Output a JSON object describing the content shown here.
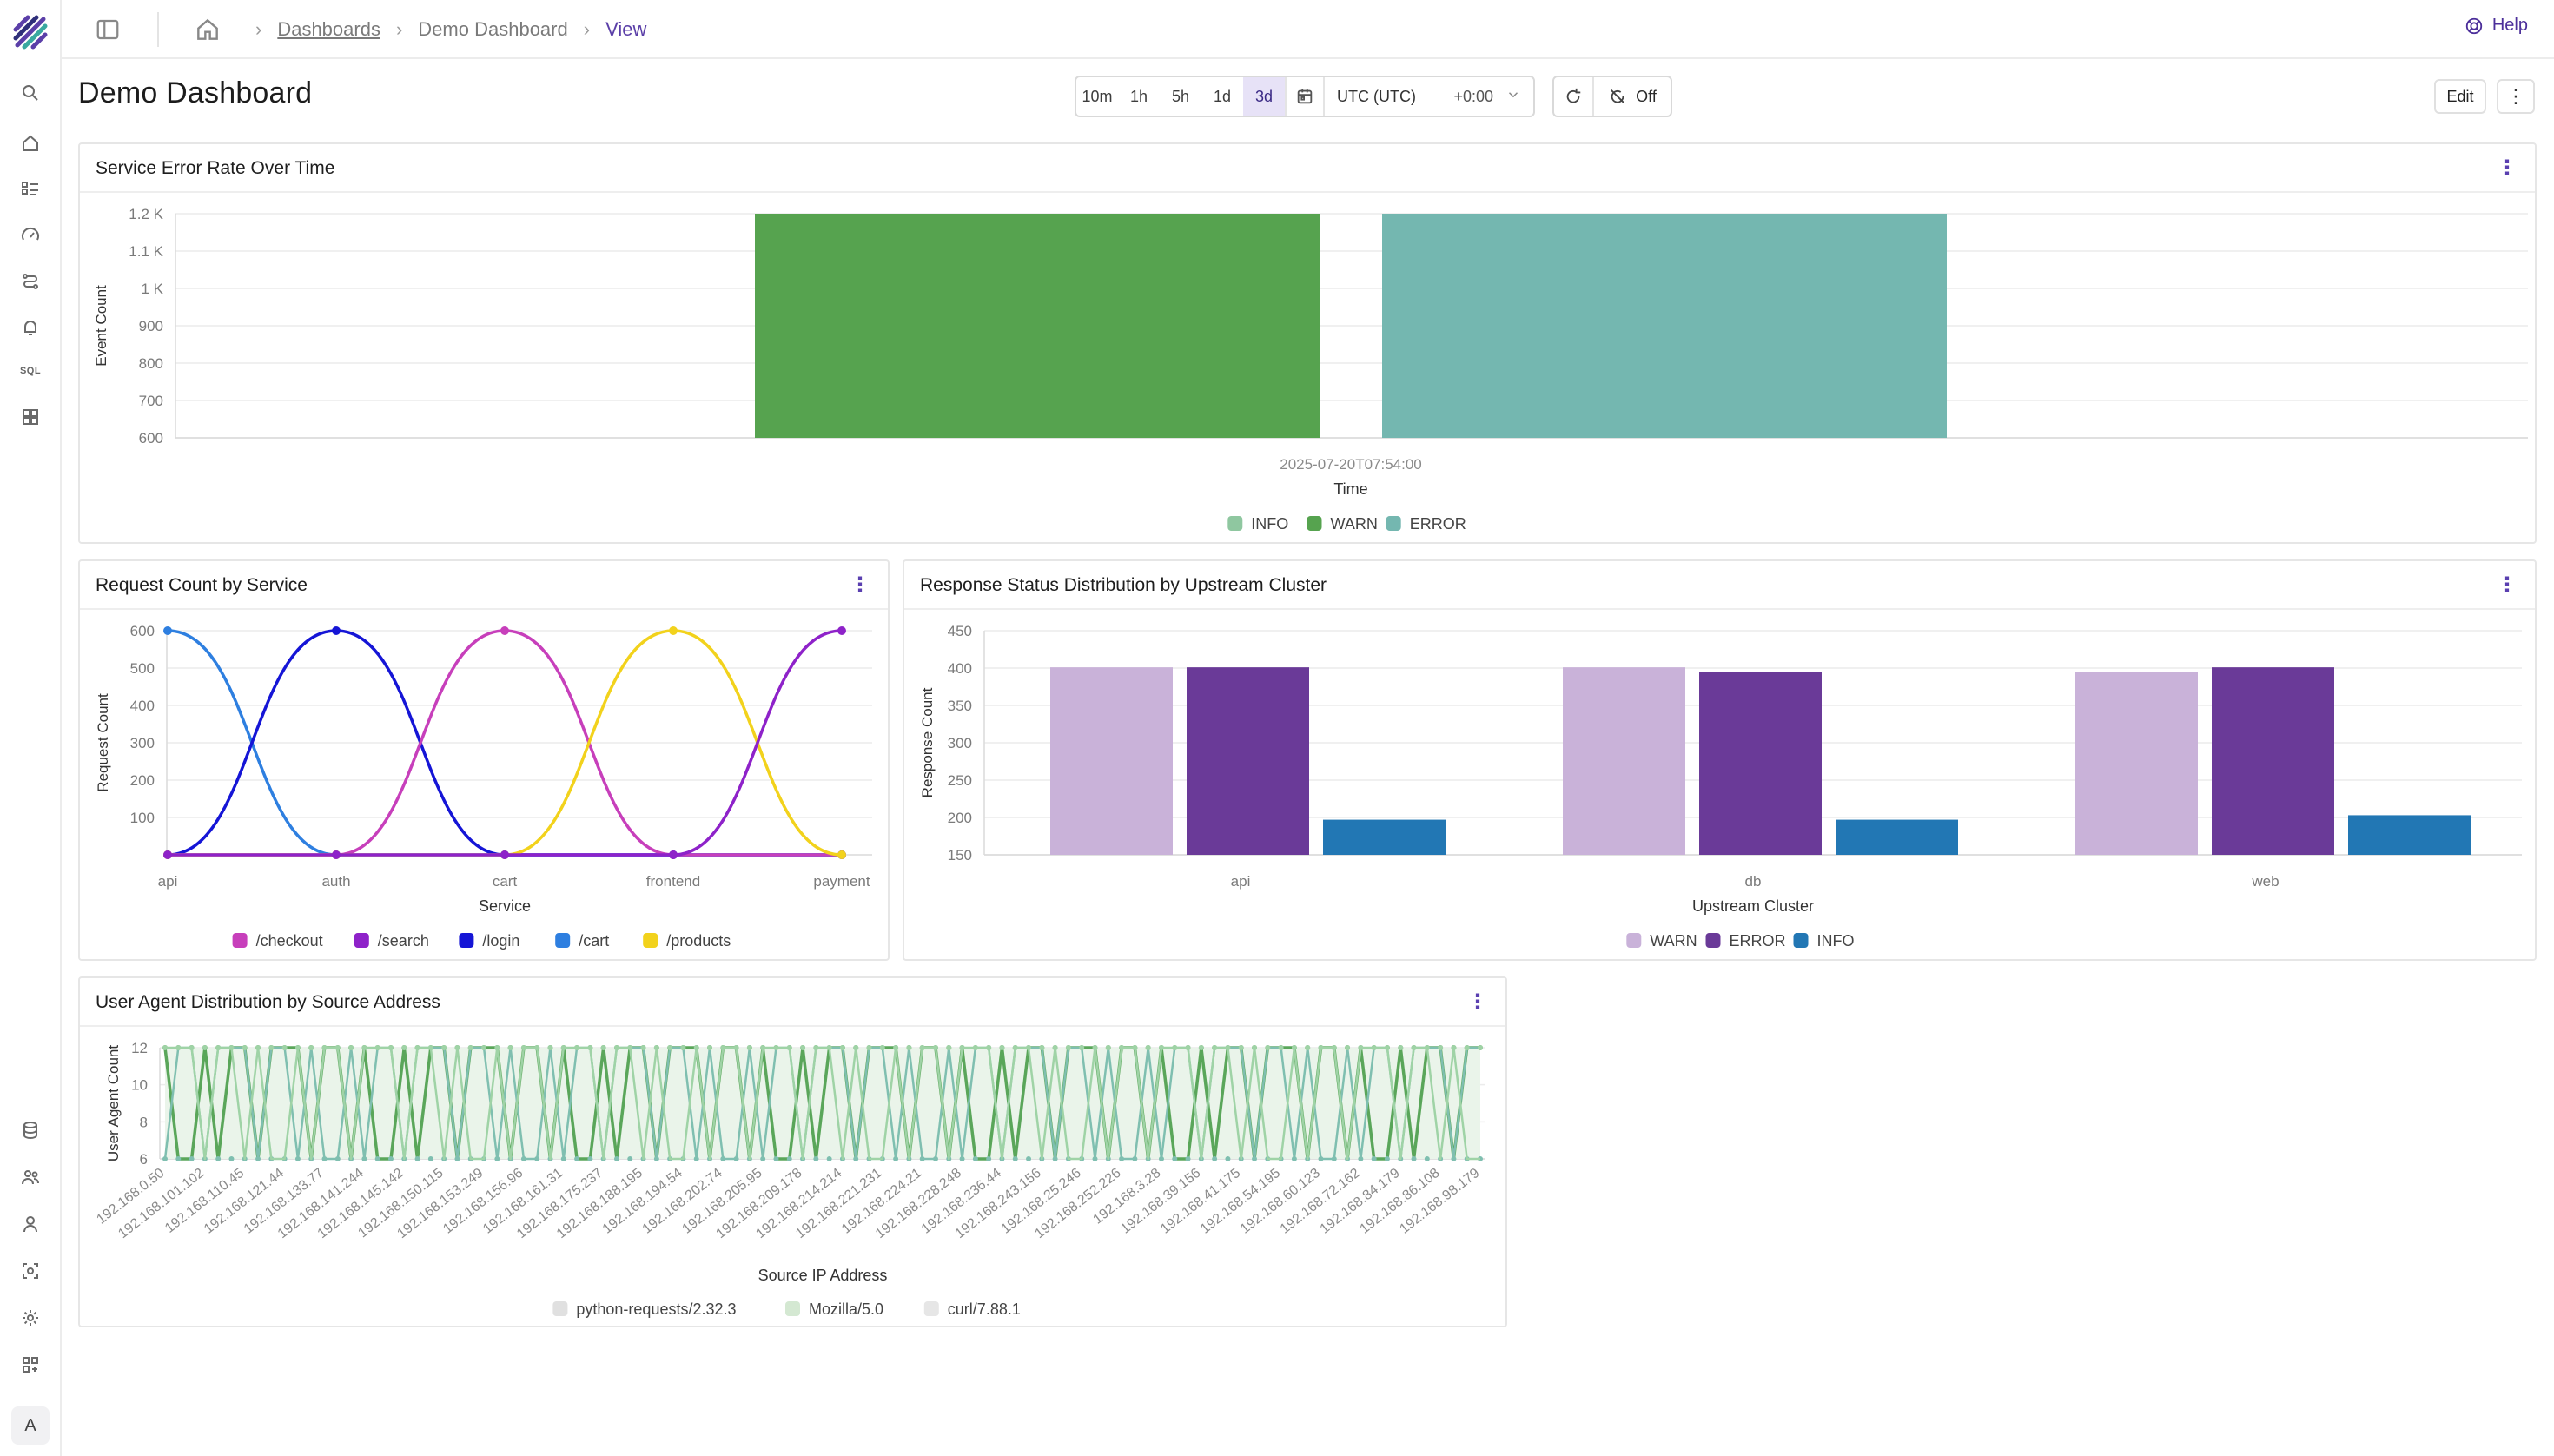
{
  "breadcrumb": {
    "link": "Dashboards",
    "middle": "Demo Dashboard",
    "current": "View"
  },
  "help_label": "Help",
  "page_title": "Demo Dashboard",
  "time_ranges": [
    "10m",
    "1h",
    "5h",
    "1d",
    "3d"
  ],
  "active_range": "3d",
  "timezone": {
    "name": "UTC (UTC)",
    "offset": "+0:00"
  },
  "auto_refresh_label": "Off",
  "edit_label": "Edit",
  "rail_icons": [
    "search-icon",
    "home-icon",
    "logs-icon",
    "gauge-icon",
    "pipeline-icon",
    "bell-icon",
    "sql-icon",
    "dashboards-icon",
    "database-icon",
    "users-icon",
    "user-icon",
    "scan-icon",
    "gear-icon",
    "apps-icon"
  ],
  "rail_sql_label": "SQL",
  "avatar_label": "A",
  "colors": {
    "accent": "#5b3fa8",
    "green": "#56a34f",
    "teal": "#74b7b0"
  },
  "panels": {
    "error_rate": {
      "title": "Service Error Rate Over Time"
    },
    "request_count": {
      "title": "Request Count by Service"
    },
    "response_status": {
      "title": "Response Status Distribution by Upstream Cluster"
    },
    "user_agent": {
      "title": "User Agent Distribution by Source Address"
    }
  },
  "chart_data": [
    {
      "id": "error_rate",
      "type": "bar",
      "x_label": "Time",
      "y_label": "Event Count",
      "categories": [
        "2025-07-20T07:54:00"
      ],
      "y_ticks": [
        "600",
        "700",
        "800",
        "900",
        "1 K",
        "1.1 K",
        "1.2 K"
      ],
      "ylim": [
        600,
        1200
      ],
      "series": [
        {
          "name": "INFO",
          "color": "#8fc7a0",
          "values": [
            null
          ]
        },
        {
          "name": "WARN",
          "color": "#56a34f",
          "values": [
            1200
          ]
        },
        {
          "name": "ERROR",
          "color": "#74b7b0",
          "values": [
            1200
          ]
        }
      ],
      "grid": true,
      "legend": "bottom"
    },
    {
      "id": "request_count",
      "type": "line",
      "x_label": "Service",
      "y_label": "Request Count",
      "categories": [
        "api",
        "auth",
        "cart",
        "frontend",
        "payment"
      ],
      "y_ticks": [
        "100",
        "200",
        "300",
        "400",
        "500",
        "600"
      ],
      "ylim": [
        0,
        600
      ],
      "series": [
        {
          "name": "/checkout",
          "color": "#c73fbb",
          "values": [
            0,
            0,
            600,
            0,
            0
          ]
        },
        {
          "name": "/search",
          "color": "#8e22c9",
          "values": [
            0,
            0,
            0,
            0,
            600
          ]
        },
        {
          "name": "/login",
          "color": "#1515d6",
          "values": [
            0,
            600,
            0,
            0,
            0
          ]
        },
        {
          "name": "/cart",
          "color": "#2e7fe0",
          "values": [
            600,
            0,
            0,
            0,
            0
          ]
        },
        {
          "name": "/products",
          "color": "#f2d21c",
          "values": [
            0,
            0,
            0,
            600,
            0
          ]
        }
      ],
      "grid": true,
      "legend": "bottom"
    },
    {
      "id": "response_status",
      "type": "bar",
      "x_label": "Upstream Cluster",
      "y_label": "Response Count",
      "categories": [
        "api",
        "db",
        "web"
      ],
      "y_ticks": [
        "150",
        "200",
        "250",
        "300",
        "350",
        "400",
        "450"
      ],
      "ylim": [
        150,
        450
      ],
      "series": [
        {
          "name": "WARN",
          "color": "#c9b2d9",
          "values": [
            401,
            401,
            395
          ]
        },
        {
          "name": "ERROR",
          "color": "#6a3a98",
          "values": [
            401,
            395,
            401
          ]
        },
        {
          "name": "INFO",
          "color": "#2277b4",
          "values": [
            197,
            197,
            203
          ]
        }
      ],
      "grid": true,
      "legend": "bottom"
    },
    {
      "id": "user_agent",
      "type": "area",
      "x_label": "Source IP Address",
      "y_label": "User Agent Count",
      "x_tick_labels": [
        "192.168.0.50",
        "192.168.101.102",
        "192.168.110.45",
        "192.168.121.44",
        "192.168.133.77",
        "192.168.141.244",
        "192.168.145.142",
        "192.168.150.115",
        "192.168.153.249",
        "192.168.156.96",
        "192.168.161.31",
        "192.168.175.237",
        "192.168.188.195",
        "192.168.194.54",
        "192.168.202.74",
        "192.168.205.95",
        "192.168.209.178",
        "192.168.214.214",
        "192.168.221.231",
        "192.168.224.21",
        "192.168.228.248",
        "192.168.236.44",
        "192.168.243.156",
        "192.168.25.246",
        "192.168.252.226",
        "192.168.3.28",
        "192.168.39.156",
        "192.168.41.175",
        "192.168.54.195",
        "192.168.60.123",
        "192.168.72.162",
        "192.168.84.179",
        "192.168.86.108",
        "192.168.98.179"
      ],
      "y_ticks": [
        "6",
        "8",
        "10",
        "12"
      ],
      "ylim": [
        6,
        12
      ],
      "series": [
        {
          "name": "python-requests/2.32.3",
          "color": "#e0e0e0"
        },
        {
          "name": "Mozilla/5.0",
          "color": "#d4e8d2"
        },
        {
          "name": "curl/7.88.1",
          "color": "#e6e6e6"
        }
      ],
      "grid": true,
      "legend": "bottom"
    }
  ]
}
